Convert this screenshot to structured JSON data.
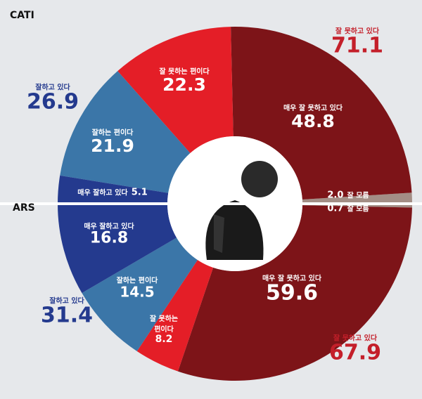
{
  "chart_data": {
    "type": "pie",
    "title": "",
    "series": [
      {
        "name": "CATI",
        "slices": [
          {
            "label": "잘 모름",
            "value": 2.0,
            "color": "#a38e86"
          },
          {
            "label": "매우 잘 못하고 있다",
            "value": 48.8,
            "color": "#7d1418"
          },
          {
            "label": "잘 못하는 편이다",
            "value": 22.3,
            "color": "#e41e27"
          },
          {
            "label": "잘하는 편이다",
            "value": 21.9,
            "color": "#3b76a8"
          },
          {
            "label": "매우 잘하고 있다",
            "value": 5.1,
            "color": "#243a8e"
          }
        ],
        "totals": {
          "negative": {
            "label": "잘 못하고 있다",
            "value": "71.1"
          },
          "positive": {
            "label": "잘하고 있다",
            "value": "26.9"
          }
        }
      },
      {
        "name": "ARS",
        "slices": [
          {
            "label": "잘 모름",
            "value": 0.7,
            "color": "#a38e86"
          },
          {
            "label": "매우 잘 못하고 있다",
            "value": 59.6,
            "color": "#7d1418"
          },
          {
            "label": "잘 못하는 편이다",
            "value": 8.2,
            "color": "#e41e27"
          },
          {
            "label": "잘하는 편이다",
            "value": 14.5,
            "color": "#3b76a8"
          },
          {
            "label": "매우 잘하고 있다",
            "value": 16.8,
            "color": "#243a8e"
          }
        ],
        "totals": {
          "negative": {
            "label": "잘 못하고 있다",
            "value": "67.9"
          },
          "positive": {
            "label": "잘하고 있다",
            "value": "31.4"
          }
        }
      }
    ],
    "colors": {
      "positive_total": "#243a8e",
      "negative_total": "#c41f2a"
    }
  },
  "labels": {
    "ars_small_label_1": "잘 못하는",
    "ars_small_label_2": "편이다"
  }
}
